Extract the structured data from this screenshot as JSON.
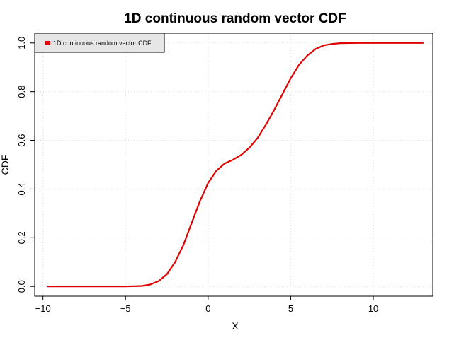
{
  "chart_data": {
    "type": "line",
    "title": "1D continuous random vector CDF",
    "xlabel": "X",
    "ylabel": "CDF",
    "xlim": [
      -10.5,
      13.6
    ],
    "ylim": [
      -0.04,
      1.04
    ],
    "xticks": [
      -10,
      -5,
      0,
      5,
      10
    ],
    "xtick_labels": [
      "−10",
      "−5",
      "0",
      "5",
      "10"
    ],
    "yticks": [
      0.0,
      0.2,
      0.4,
      0.6,
      0.8,
      1.0
    ],
    "ytick_labels": [
      "0.0",
      "0.2",
      "0.4",
      "0.6",
      "0.8",
      "1.0"
    ],
    "grid": true,
    "legend": {
      "position": "top-left"
    },
    "series": [
      {
        "name": "1D continuous random vector CDF",
        "color": "#e00000",
        "x": [
          -9.7,
          -8,
          -6,
          -5,
          -4,
          -3.5,
          -3,
          -2.5,
          -2,
          -1.5,
          -1,
          -0.5,
          0,
          0.5,
          1,
          1.5,
          2,
          2.5,
          3,
          3.5,
          4,
          4.5,
          5,
          5.5,
          6,
          6.5,
          7,
          7.5,
          8,
          9,
          10,
          11,
          12,
          13
        ],
        "y": [
          0.0,
          0.0,
          0.0,
          0.0,
          0.002,
          0.008,
          0.022,
          0.05,
          0.1,
          0.17,
          0.26,
          0.35,
          0.425,
          0.475,
          0.505,
          0.52,
          0.54,
          0.57,
          0.61,
          0.665,
          0.725,
          0.79,
          0.855,
          0.91,
          0.948,
          0.975,
          0.99,
          0.996,
          0.999,
          1.0,
          1.0,
          1.0,
          1.0,
          1.0
        ]
      }
    ]
  }
}
